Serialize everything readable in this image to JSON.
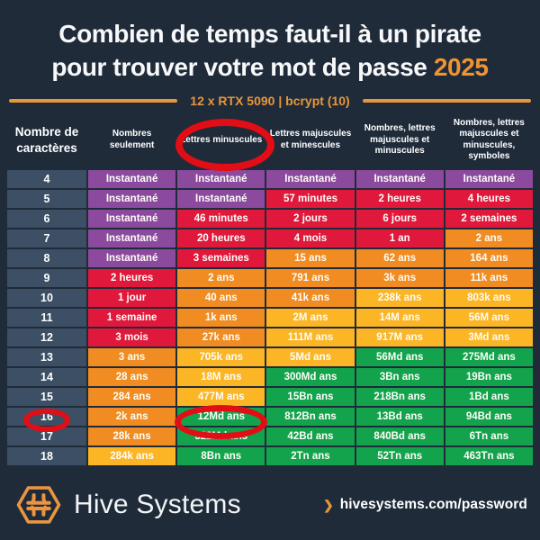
{
  "title": {
    "line1": "Combien de temps faut-il à un pirate",
    "line2": "pour trouver votre mot de passe",
    "year": "2025"
  },
  "subtitle": "12 x RTX 5090 | bcrypt (10)",
  "chart_data": {
    "type": "table",
    "title": "Combien de temps faut-il à un pirate pour trouver votre mot de passe 2025",
    "subtitle": "12 x RTX 5090 | bcrypt (10)",
    "first_column_header": "Nombre de caractères",
    "column_headers": [
      "Nombres seulement",
      "Lettres minuscules",
      "Lettres majuscules et minescules",
      "Nombres, lettres majuscules et minuscules",
      "Nombres, lettres majuscules et minuscules, symboles"
    ],
    "rows": [
      {
        "chars": "4",
        "cells": [
          {
            "t": "Instantané",
            "c": "purple"
          },
          {
            "t": "Instantané",
            "c": "purple"
          },
          {
            "t": "Instantané",
            "c": "purple"
          },
          {
            "t": "Instantané",
            "c": "purple"
          },
          {
            "t": "Instantané",
            "c": "purple"
          }
        ]
      },
      {
        "chars": "5",
        "cells": [
          {
            "t": "Instantané",
            "c": "purple"
          },
          {
            "t": "Instantané",
            "c": "purple"
          },
          {
            "t": "57 minutes",
            "c": "red"
          },
          {
            "t": "2 heures",
            "c": "red"
          },
          {
            "t": "4 heures",
            "c": "red"
          }
        ]
      },
      {
        "chars": "6",
        "cells": [
          {
            "t": "Instantané",
            "c": "purple"
          },
          {
            "t": "46 minutes",
            "c": "red"
          },
          {
            "t": "2 jours",
            "c": "red"
          },
          {
            "t": "6 jours",
            "c": "red"
          },
          {
            "t": "2 semaines",
            "c": "red"
          }
        ]
      },
      {
        "chars": "7",
        "cells": [
          {
            "t": "Instantané",
            "c": "purple"
          },
          {
            "t": "20 heures",
            "c": "red"
          },
          {
            "t": "4 mois",
            "c": "red"
          },
          {
            "t": "1 an",
            "c": "red"
          },
          {
            "t": "2 ans",
            "c": "orange"
          }
        ]
      },
      {
        "chars": "8",
        "cells": [
          {
            "t": "Instantané",
            "c": "purple"
          },
          {
            "t": "3 semaines",
            "c": "red"
          },
          {
            "t": "15 ans",
            "c": "orange"
          },
          {
            "t": "62 ans",
            "c": "orange"
          },
          {
            "t": "164 ans",
            "c": "orange"
          }
        ]
      },
      {
        "chars": "9",
        "cells": [
          {
            "t": "2 heures",
            "c": "red"
          },
          {
            "t": "2 ans",
            "c": "orange"
          },
          {
            "t": "791 ans",
            "c": "orange"
          },
          {
            "t": "3k ans",
            "c": "orange"
          },
          {
            "t": "11k ans",
            "c": "orange"
          }
        ]
      },
      {
        "chars": "10",
        "cells": [
          {
            "t": "1 jour",
            "c": "red"
          },
          {
            "t": "40 ans",
            "c": "orange"
          },
          {
            "t": "41k ans",
            "c": "orange"
          },
          {
            "t": "238k ans",
            "c": "yellow"
          },
          {
            "t": "803k ans",
            "c": "yellow"
          }
        ]
      },
      {
        "chars": "11",
        "cells": [
          {
            "t": "1 semaine",
            "c": "red"
          },
          {
            "t": "1k ans",
            "c": "orange"
          },
          {
            "t": "2M ans",
            "c": "yellow"
          },
          {
            "t": "14M ans",
            "c": "yellow"
          },
          {
            "t": "56M ans",
            "c": "yellow"
          }
        ]
      },
      {
        "chars": "12",
        "cells": [
          {
            "t": "3 mois",
            "c": "red"
          },
          {
            "t": "27k ans",
            "c": "orange"
          },
          {
            "t": "111M ans",
            "c": "yellow"
          },
          {
            "t": "917M ans",
            "c": "yellow"
          },
          {
            "t": "3Md ans",
            "c": "yellow"
          }
        ]
      },
      {
        "chars": "13",
        "cells": [
          {
            "t": "3 ans",
            "c": "orange"
          },
          {
            "t": "705k ans",
            "c": "yellow"
          },
          {
            "t": "5Md ans",
            "c": "yellow"
          },
          {
            "t": "56Md ans",
            "c": "green"
          },
          {
            "t": "275Md ans",
            "c": "green"
          }
        ]
      },
      {
        "chars": "14",
        "cells": [
          {
            "t": "28 ans",
            "c": "orange"
          },
          {
            "t": "18M ans",
            "c": "yellow"
          },
          {
            "t": "300Md ans",
            "c": "green"
          },
          {
            "t": "3Bn ans",
            "c": "green"
          },
          {
            "t": "19Bn ans",
            "c": "green"
          }
        ]
      },
      {
        "chars": "15",
        "cells": [
          {
            "t": "284 ans",
            "c": "orange"
          },
          {
            "t": "477M ans",
            "c": "yellow"
          },
          {
            "t": "15Bn ans",
            "c": "green"
          },
          {
            "t": "218Bn ans",
            "c": "green"
          },
          {
            "t": "1Bd ans",
            "c": "green"
          }
        ]
      },
      {
        "chars": "16",
        "cells": [
          {
            "t": "2k ans",
            "c": "orange"
          },
          {
            "t": "12Md ans",
            "c": "green"
          },
          {
            "t": "812Bn ans",
            "c": "green"
          },
          {
            "t": "13Bd ans",
            "c": "green"
          },
          {
            "t": "94Bd ans",
            "c": "green"
          }
        ]
      },
      {
        "chars": "17",
        "cells": [
          {
            "t": "28k ans",
            "c": "orange"
          },
          {
            "t": "322Md ans",
            "c": "green"
          },
          {
            "t": "42Bd ans",
            "c": "green"
          },
          {
            "t": "840Bd ans",
            "c": "green"
          },
          {
            "t": "6Tn ans",
            "c": "green"
          }
        ]
      },
      {
        "chars": "18",
        "cells": [
          {
            "t": "284k ans",
            "c": "yellow"
          },
          {
            "t": "8Bn ans",
            "c": "green"
          },
          {
            "t": "2Tn ans",
            "c": "green"
          },
          {
            "t": "52Tn ans",
            "c": "green"
          },
          {
            "t": "463Tn ans",
            "c": "green"
          }
        ]
      }
    ],
    "cell_colors": {
      "purple": "#8C4A9E",
      "red": "#E0193C",
      "orange": "#F08C21",
      "yellow": "#FCB525",
      "green": "#13A34C"
    }
  },
  "annotations": {
    "circled_items": [
      "Lettres minuscules",
      "16",
      "12Md ans"
    ],
    "circle_color": "#E30D15"
  },
  "colors": {
    "background": "#202B3A",
    "accent_orange": "#EE9434",
    "first_column": "#3C4F65"
  },
  "footer": {
    "brand": "Hive Systems",
    "chevron": "❯",
    "link": "hivesystems.com/password"
  }
}
